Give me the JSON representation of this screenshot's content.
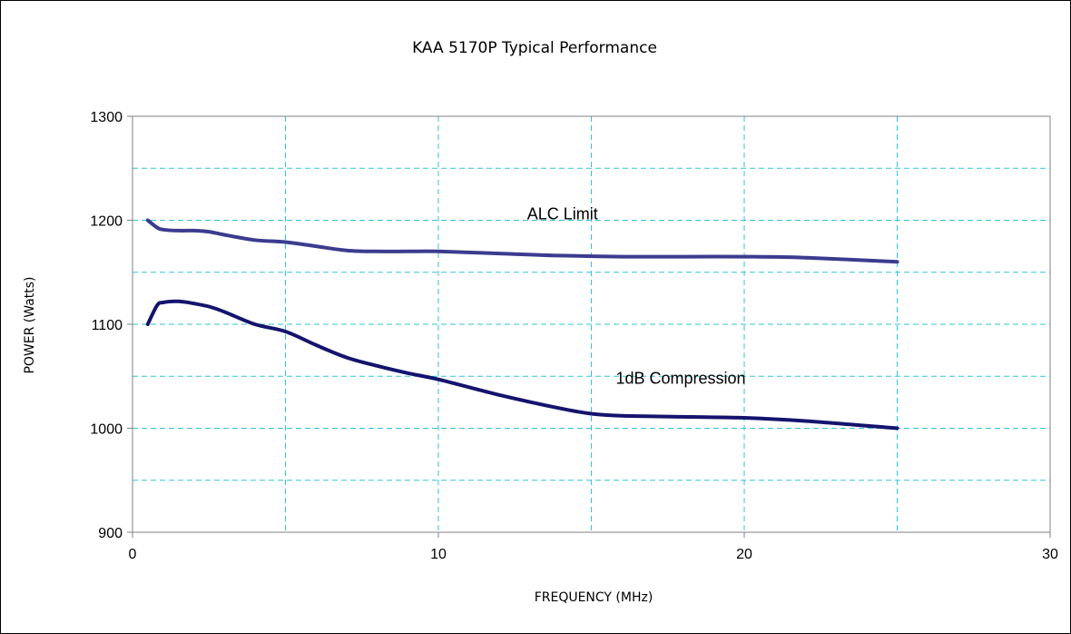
{
  "chart_data": {
    "type": "line",
    "title": "KAA 5170P Typical Performance",
    "xlabel": "FREQUENCY (MHz)",
    "ylabel": "POWER (Watts)",
    "xlim": [
      0,
      30
    ],
    "ylim": [
      900,
      1300
    ],
    "x_major_ticks": [
      0,
      10,
      20,
      30
    ],
    "y_major_ticks": [
      900,
      1000,
      1100,
      1200,
      1300
    ],
    "x_grid": [
      5,
      10,
      15,
      20,
      25
    ],
    "y_grid": [
      950,
      1000,
      1050,
      1100,
      1150,
      1200,
      1250
    ],
    "grid": true,
    "legend": "none",
    "colors": {
      "grid": "#33c3d6",
      "axis": "#808080",
      "alc_line": "#3b3b8f",
      "compression_line": "#14146e"
    },
    "series": [
      {
        "x": [
          0.5,
          0.8,
          1.0,
          1.5,
          2.0,
          2.5,
          3.0,
          4.0,
          5.0,
          6.0,
          7.0,
          8.0,
          9.0,
          10.0,
          12.0,
          14.0,
          16.0,
          18.0,
          20.0,
          22.0,
          25.0
        ],
        "values": [
          1200,
          1193,
          1191,
          1190,
          1190,
          1189,
          1186,
          1181,
          1179,
          1175,
          1171,
          1170,
          1170,
          1170,
          1168,
          1166,
          1165,
          1165,
          1165,
          1164,
          1160
        ]
      },
      {
        "x": [
          0.5,
          0.8,
          1.0,
          1.5,
          2.0,
          2.5,
          3.0,
          4.0,
          5.0,
          6.0,
          7.0,
          8.0,
          9.0,
          10.0,
          12.0,
          14.0,
          15.0,
          16.0,
          18.0,
          20.0,
          22.0,
          25.0
        ],
        "values": [
          1100,
          1118,
          1121,
          1122,
          1120,
          1117,
          1112,
          1100,
          1093,
          1080,
          1068,
          1060,
          1053,
          1047,
          1032,
          1019,
          1014,
          1012,
          1011,
          1010,
          1007,
          1000
        ]
      }
    ],
    "annotations": [
      {
        "text": "ALC Limit",
        "x": 12.9,
        "y": 1201
      },
      {
        "text": "1dB Compression",
        "x": 15.8,
        "y": 1043
      }
    ]
  }
}
